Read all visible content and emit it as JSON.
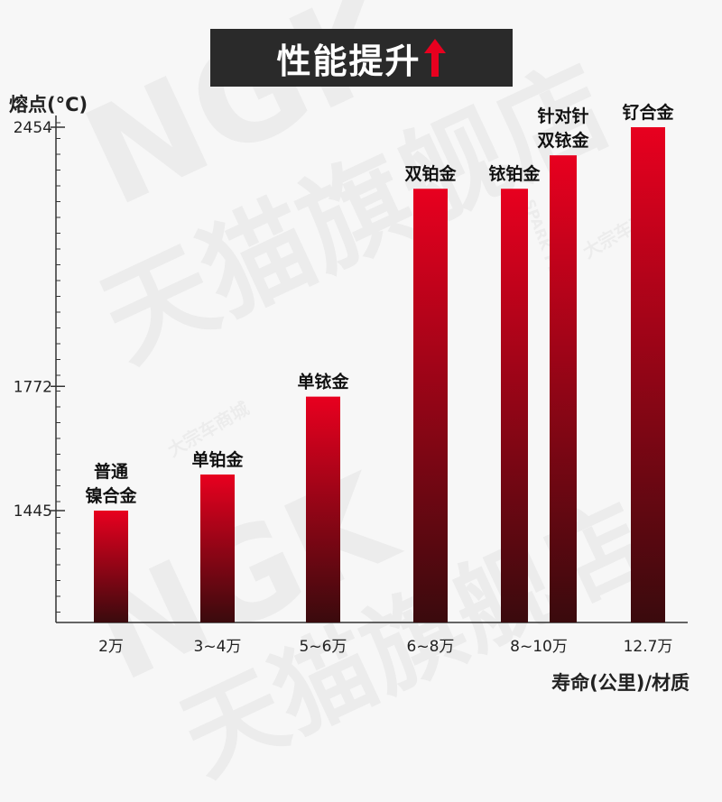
{
  "header": {
    "title": "性能提升"
  },
  "watermark": {
    "texts": [
      "NGK",
      "天猫旗舰店",
      "大宗车商城",
      "SPARK PLUGS"
    ]
  },
  "chart_data": {
    "type": "bar",
    "xlabel": "寿命(公里)/材质",
    "ylabel": "熔点(°C)",
    "yticks": [
      1445,
      1772,
      2454
    ],
    "ylim": [
      1200,
      2500
    ],
    "bars": [
      {
        "category": "2万",
        "value": 1445,
        "label": [
          "普通",
          "镍合金"
        ]
      },
      {
        "category": "3~4万",
        "value": 1540,
        "label": [
          "单铂金"
        ]
      },
      {
        "category": "5~6万",
        "value": 1745,
        "label": [
          "单铱金"
        ]
      },
      {
        "category": "6~8万",
        "value": 2292,
        "label": [
          "双铂金"
        ]
      },
      {
        "category": "8~10万",
        "value": 2292,
        "label": [
          "铱铂金"
        ],
        "group": 4
      },
      {
        "category": "8~10万",
        "value": 2380,
        "label": [
          "针对针",
          "双铱金"
        ],
        "group": 4,
        "hide_category": true
      },
      {
        "category": "12.7万",
        "value": 2454,
        "label": [
          "钌合金"
        ]
      }
    ],
    "colors": {
      "bar_top": "#e8001f",
      "bar_bottom": "#3a0a0d",
      "axis": "#333333"
    }
  }
}
